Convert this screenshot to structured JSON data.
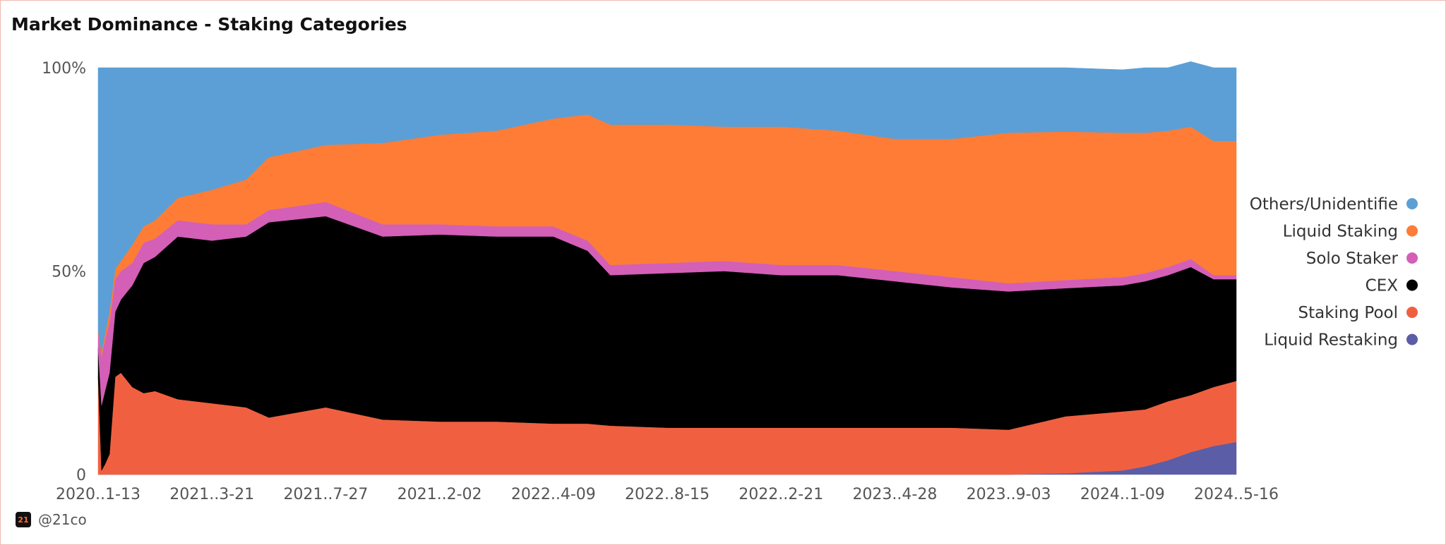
{
  "page": {
    "watermark": "@21co",
    "logo_text": "21"
  },
  "chart_data": {
    "type": "area",
    "stacked": true,
    "normalized": true,
    "title": "Market Dominance - Staking Categories",
    "xlabel": "",
    "ylabel": "",
    "ylim": [
      0,
      100
    ],
    "y_ticks": [
      "0",
      "50%",
      "100%"
    ],
    "y_tick_values": [
      0,
      50,
      100
    ],
    "x_ticks": [
      "2020..1-13",
      "2021..3-21",
      "2021..7-27",
      "2021..2-02",
      "2022..4-09",
      "2022..8-15",
      "2022..2-21",
      "2023..4-28",
      "2023..9-03",
      "2024..1-09",
      "2024..5-16"
    ],
    "grid": false,
    "legend_position": "right",
    "x": [
      0,
      0.3,
      0.6,
      1.0,
      1.5,
      2.0,
      3.0,
      4.0,
      5.0,
      7.0,
      10.0,
      13.0,
      15.0,
      20.0,
      25.0,
      30.0,
      35.0,
      40.0,
      43.0,
      45.0,
      50.0,
      55.0,
      60.0,
      65.0,
      70.0,
      75.0,
      80.0,
      85.0,
      90.0,
      92.0,
      94.0,
      96.0,
      98.0,
      100.0
    ],
    "series": [
      {
        "name": "Liquid Restaking",
        "color": "#5b5ea6",
        "values": [
          0,
          0,
          0,
          0,
          0,
          0,
          0,
          0,
          0,
          0,
          0,
          0,
          0,
          0,
          0,
          0,
          0,
          0,
          0,
          0,
          0,
          0,
          0,
          0,
          0,
          0,
          0,
          0.3,
          1.0,
          2.0,
          3.5,
          5.5,
          7.0,
          8.0
        ]
      },
      {
        "name": "Staking Pool",
        "color": "#f06040",
        "values": [
          24.0,
          1.0,
          2.5,
          5.0,
          24.0,
          25.0,
          21.5,
          20.0,
          20.5,
          18.5,
          17.5,
          16.5,
          14.0,
          16.5,
          13.5,
          13.0,
          13.0,
          12.5,
          12.5,
          12.0,
          11.5,
          11.5,
          11.5,
          11.5,
          11.5,
          11.5,
          11.0,
          14.0,
          14.5,
          14.0,
          14.5,
          14.0,
          14.5,
          15.0
        ]
      },
      {
        "name": "CEX",
        "color": "#000000",
        "values": [
          7.0,
          16.0,
          18.0,
          20.0,
          16.0,
          18.0,
          25.0,
          32.0,
          33.0,
          40.0,
          40.0,
          42.0,
          48.0,
          47.0,
          45.0,
          46.0,
          45.5,
          46.0,
          42.5,
          37.0,
          38.0,
          38.5,
          37.5,
          37.5,
          36.0,
          34.5,
          34.0,
          31.5,
          31.0,
          31.5,
          31.0,
          31.5,
          26.5,
          25.0
        ]
      },
      {
        "name": "Solo Staker",
        "color": "#d35fb7",
        "values": [
          4.0,
          12.0,
          12.5,
          12.5,
          8.0,
          7.0,
          5.5,
          5.0,
          4.5,
          4.0,
          4.0,
          3.0,
          3.0,
          3.5,
          3.0,
          2.5,
          2.5,
          2.5,
          2.5,
          2.5,
          2.5,
          2.5,
          2.5,
          2.5,
          2.5,
          2.5,
          2.0,
          2.0,
          2.0,
          2.0,
          2.0,
          2.0,
          1.0,
          1.0
        ]
      },
      {
        "name": "Liquid Staking",
        "color": "#ff7c36",
        "values": [
          0.5,
          1.0,
          1.5,
          2.5,
          2.5,
          2.5,
          4.5,
          4.0,
          4.5,
          5.5,
          8.5,
          11.0,
          13.0,
          14.0,
          20.0,
          22.0,
          23.5,
          26.5,
          31.0,
          34.5,
          34.0,
          33.0,
          34.0,
          33.0,
          32.5,
          34.0,
          37.0,
          36.5,
          35.5,
          34.5,
          33.5,
          32.5,
          33.0,
          33.0
        ]
      },
      {
        "name": "Others/Unidentifie",
        "color": "#5b9fd6",
        "values": [
          64.5,
          70.0,
          65.5,
          60.0,
          49.5,
          47.5,
          43.5,
          39.0,
          37.5,
          32.0,
          30.0,
          27.5,
          22.0,
          19.0,
          18.5,
          16.5,
          15.5,
          12.5,
          11.5,
          14.0,
          14.0,
          14.5,
          14.5,
          15.5,
          17.5,
          17.5,
          16.0,
          15.7,
          15.5,
          16.0,
          15.5,
          16.0,
          18.0,
          18.0
        ]
      }
    ],
    "legend_order": [
      "Others/Unidentifie",
      "Liquid Staking",
      "Solo Staker",
      "CEX",
      "Staking Pool",
      "Liquid Restaking"
    ]
  }
}
